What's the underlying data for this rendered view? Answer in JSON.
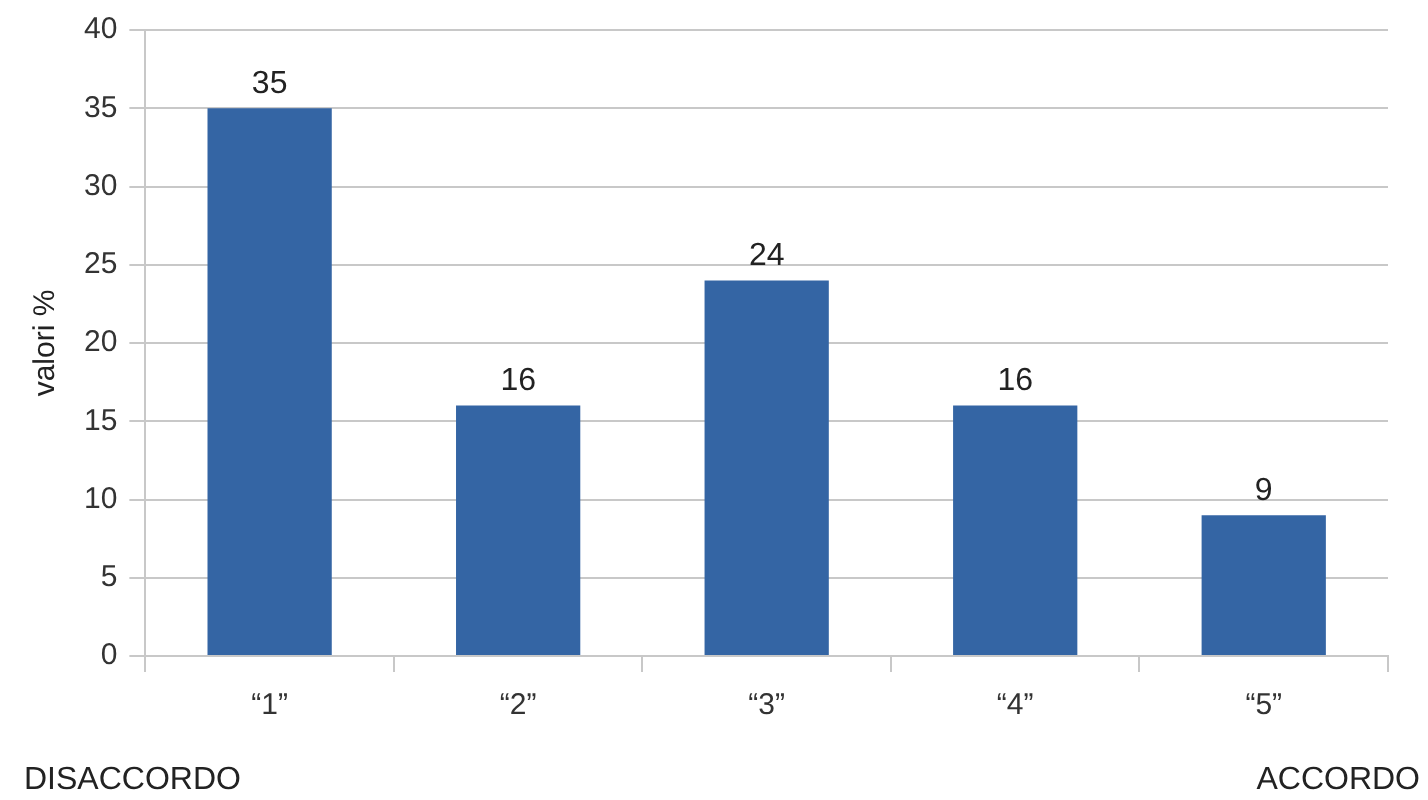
{
  "chart_data": {
    "type": "bar",
    "ylabel": "valori %",
    "categories": [
      "“1”",
      "“2”",
      "“3”",
      "“4”",
      "“5”"
    ],
    "values": [
      35,
      16,
      24,
      16,
      9
    ],
    "color": "#3465a4",
    "ylim": [
      0,
      40
    ],
    "yticks": [
      0,
      5,
      10,
      15,
      20,
      25,
      30,
      35,
      40
    ],
    "grid": "y",
    "data_labels": true,
    "legend": false,
    "annotations": [
      "DISACCORDO",
      "ACCORDO"
    ]
  }
}
